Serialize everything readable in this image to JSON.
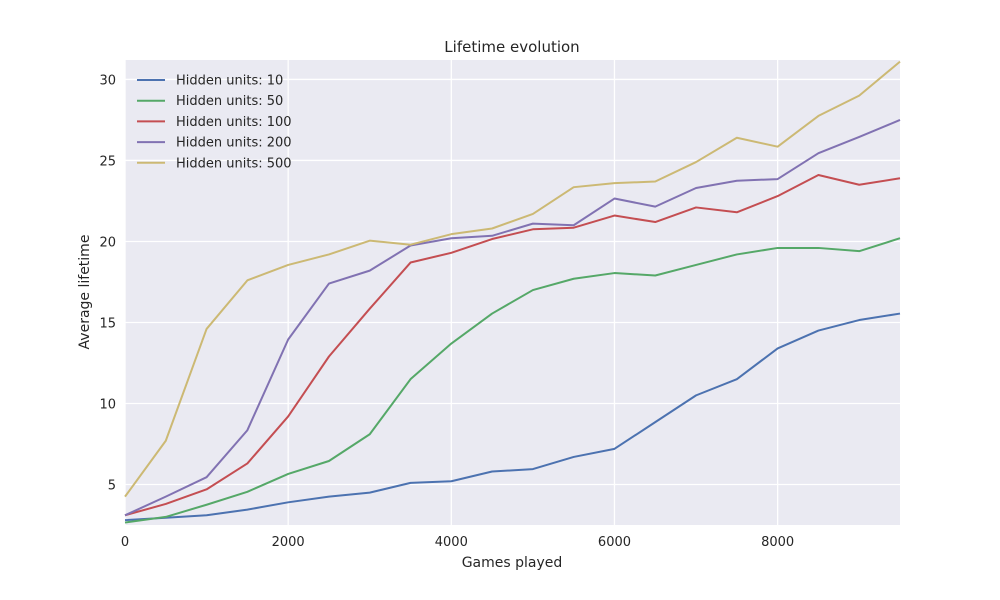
{
  "chart_data": {
    "type": "line",
    "title": "Lifetime evolution",
    "xlabel": "Games played",
    "ylabel": "Average lifetime",
    "xlim": [
      0,
      9500
    ],
    "ylim": [
      2.5,
      31.2
    ],
    "xticks": [
      0,
      2000,
      4000,
      6000,
      8000
    ],
    "yticks": [
      5,
      10,
      15,
      20,
      25,
      30
    ],
    "grid": true,
    "legend_position": "top-left",
    "x": [
      0,
      500,
      1000,
      1500,
      2000,
      2500,
      3000,
      3500,
      4000,
      4500,
      5000,
      5500,
      6000,
      6500,
      7000,
      7500,
      8000,
      8500,
      9000,
      9500
    ],
    "series": [
      {
        "name": "Hidden units: 10",
        "color": "#4c72b0",
        "values": [
          2.8,
          2.95,
          3.1,
          3.45,
          3.9,
          4.25,
          4.5,
          5.1,
          5.2,
          5.8,
          5.95,
          6.7,
          7.2,
          8.85,
          10.5,
          11.5,
          13.4,
          14.5,
          15.15,
          15.55
        ]
      },
      {
        "name": "Hidden units: 50",
        "color": "#55a868",
        "values": [
          2.65,
          3.0,
          3.75,
          4.55,
          5.65,
          6.45,
          8.1,
          11.5,
          13.7,
          15.55,
          17.0,
          17.7,
          18.05,
          17.9,
          18.55,
          19.2,
          19.6,
          19.6,
          19.4,
          20.2
        ]
      },
      {
        "name": "Hidden units: 100",
        "color": "#c44e52",
        "values": [
          3.1,
          3.8,
          4.7,
          6.3,
          9.2,
          12.9,
          15.85,
          18.7,
          19.3,
          20.15,
          20.75,
          20.85,
          21.6,
          21.2,
          22.1,
          21.8,
          22.8,
          24.1,
          23.5,
          23.9
        ]
      },
      {
        "name": "Hidden units: 200",
        "color": "#8172b2",
        "values": [
          3.1,
          4.25,
          5.45,
          8.35,
          13.95,
          17.4,
          18.2,
          19.75,
          20.2,
          20.35,
          21.1,
          21.0,
          22.65,
          22.15,
          23.3,
          23.75,
          23.85,
          25.45,
          26.45,
          27.5
        ]
      },
      {
        "name": "Hidden units: 500",
        "color": "#ccb974",
        "values": [
          4.25,
          7.7,
          14.6,
          17.6,
          18.55,
          19.2,
          20.05,
          19.8,
          20.45,
          20.8,
          21.7,
          23.35,
          23.6,
          23.7,
          24.9,
          26.4,
          25.85,
          27.75,
          29.0,
          31.1
        ]
      }
    ]
  }
}
